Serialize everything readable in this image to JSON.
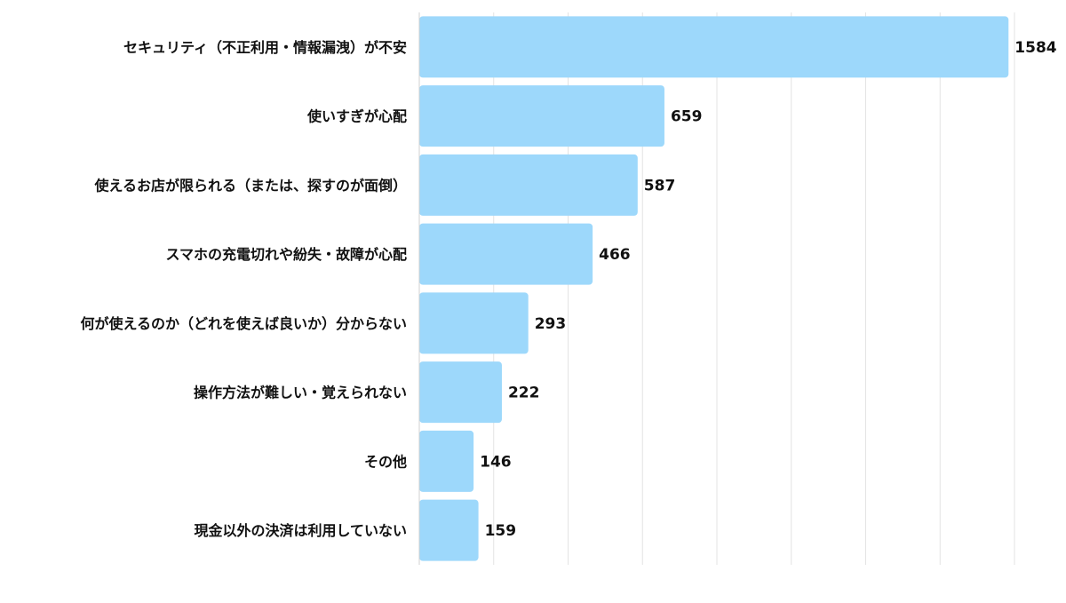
{
  "chart_data": {
    "type": "bar",
    "orientation": "horizontal",
    "categories": [
      "セキュリティ（不正利用・情報漏洩）が不安",
      "使いすぎが心配",
      "使えるお店が限られる（または、探すのが面倒）",
      "スマホの充電切れや紛失・故障が心配",
      "何が使えるのか（どれを使えば良いか）分からない",
      "操作方法が難しい・覚えられない",
      "その他",
      "現金以外の決済は利用していない"
    ],
    "values": [
      1584,
      659,
      587,
      466,
      293,
      222,
      146,
      159
    ],
    "xlim": [
      0,
      1600
    ],
    "grid": true,
    "legend": "none",
    "bar_color": "#9dd8fb",
    "grid_color": "#e3e3e3",
    "axis_color": "#d0d0d0",
    "label_color": "#111111"
  }
}
